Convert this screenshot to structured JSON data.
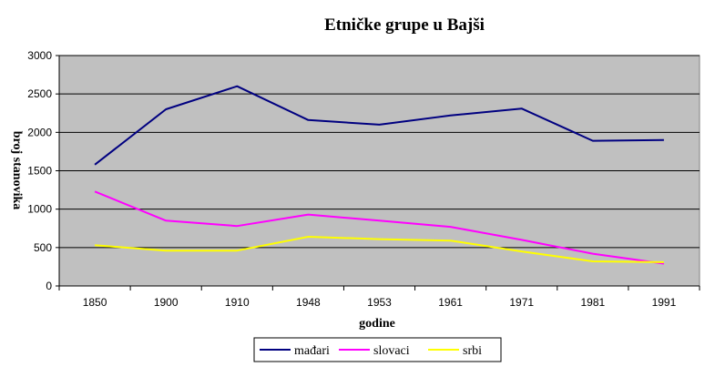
{
  "chart_data": {
    "type": "line",
    "title": "Etničke grupe u Bajši",
    "xlabel": "godine",
    "ylabel": "broj stanovika",
    "categories": [
      "1850",
      "1900",
      "1910",
      "1948",
      "1953",
      "1961",
      "1971",
      "1981",
      "1991"
    ],
    "y_ticks": [
      "0",
      "500",
      "1000",
      "1500",
      "2000",
      "2500",
      "3000"
    ],
    "ylim": [
      0,
      3000
    ],
    "grid": true,
    "legend_position": "bottom",
    "plot_background": "#c0c0c0",
    "series": [
      {
        "name": "mađari",
        "color": "#000080",
        "values": [
          1580,
          2300,
          2600,
          2160,
          2100,
          2220,
          2310,
          1890,
          1900
        ]
      },
      {
        "name": "slovaci",
        "color": "#ff00ff",
        "values": [
          1230,
          850,
          780,
          930,
          850,
          770,
          600,
          420,
          290
        ]
      },
      {
        "name": "srbi",
        "color": "#ffff00",
        "values": [
          530,
          460,
          460,
          640,
          610,
          590,
          450,
          320,
          310
        ]
      }
    ]
  }
}
